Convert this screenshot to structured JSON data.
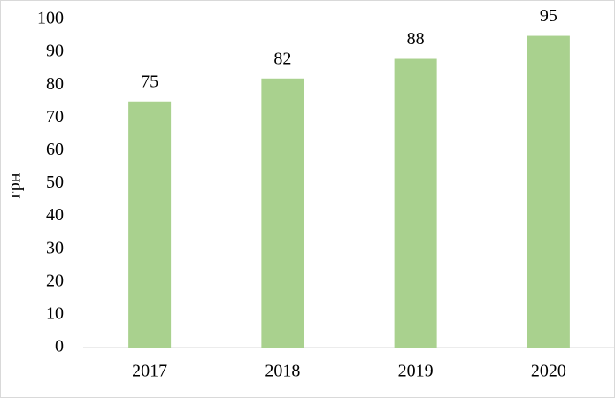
{
  "chart_data": {
    "type": "bar",
    "y_label": "грн",
    "categories": [
      "2017",
      "2018",
      "2019",
      "2020"
    ],
    "values": [
      75,
      82,
      88,
      95
    ],
    "color": "#a9d18e",
    "ylim": [
      0,
      100
    ],
    "yticks": [
      0,
      10,
      20,
      30,
      40,
      50,
      60,
      70,
      80,
      90,
      100
    ],
    "grid": false
  }
}
